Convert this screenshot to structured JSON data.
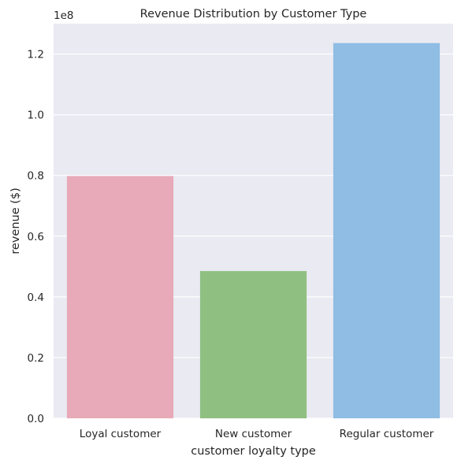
{
  "chart_data": {
    "type": "bar",
    "title": "Revenue Distribution by Customer Type",
    "xlabel": "customer loyalty type",
    "ylabel": "revenue ($)",
    "y_offset_label": "1e8",
    "categories": [
      "Loyal customer",
      "New customer",
      "Regular customer"
    ],
    "values": [
      79800000,
      48500000,
      123600000
    ],
    "ylim": [
      0,
      130000000
    ],
    "yticks": [
      0,
      20000000,
      40000000,
      60000000,
      80000000,
      100000000,
      120000000
    ],
    "ytick_labels": [
      "0.0",
      "0.2",
      "0.4",
      "0.6",
      "0.8",
      "1.0",
      "1.2"
    ],
    "colors": [
      "#e8a9b8",
      "#8fc082",
      "#8fbde3"
    ],
    "background": "#eaeaf2",
    "grid": true
  }
}
